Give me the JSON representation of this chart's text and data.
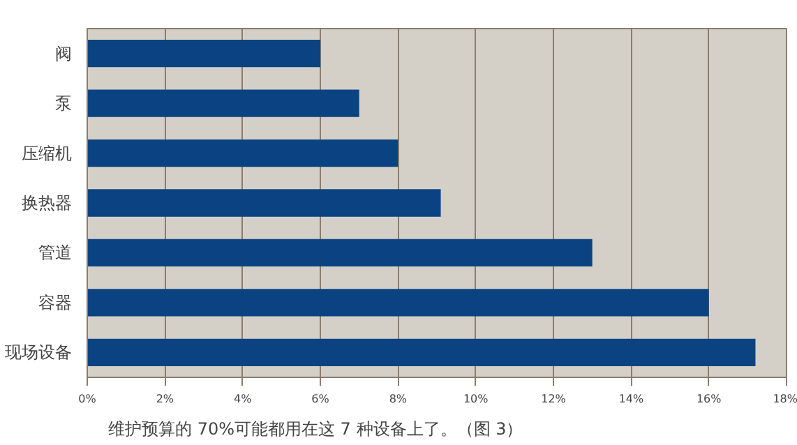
{
  "chart_data": {
    "type": "bar",
    "orientation": "horizontal",
    "categories": [
      "阀",
      "泵",
      "压缩机",
      "换热器",
      "管道",
      "容器",
      "现场设备"
    ],
    "values": [
      6,
      7,
      8,
      9.1,
      13,
      16,
      17.2
    ],
    "color": "#0b4382",
    "xlim": [
      0,
      18
    ],
    "xticks": [
      {
        "value": 0,
        "label": "0%"
      },
      {
        "value": 2,
        "label": "2%"
      },
      {
        "value": 4,
        "label": "4%"
      },
      {
        "value": 6,
        "label": "6%"
      },
      {
        "value": 8,
        "label": "8%"
      },
      {
        "value": 10,
        "label": "10%"
      },
      {
        "value": 12,
        "label": "12%"
      },
      {
        "value": 14,
        "label": "14%"
      },
      {
        "value": 16,
        "label": "16%"
      },
      {
        "value": 18,
        "label": "18%"
      }
    ],
    "grid": "x",
    "annotations": [
      "维护预算的 70%可能都用在这 7 种设备上了。（图 3）"
    ]
  }
}
